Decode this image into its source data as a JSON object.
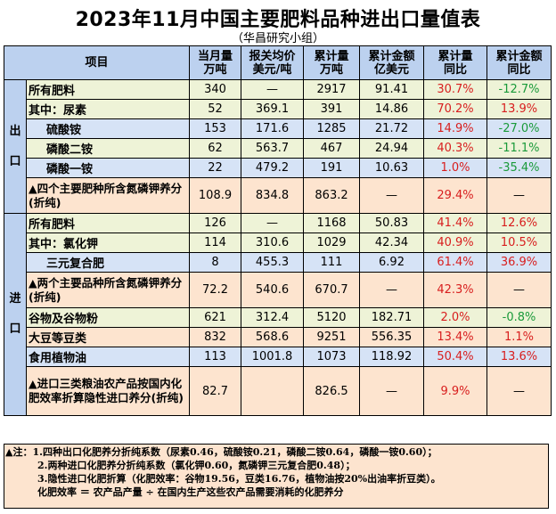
{
  "title": "2023年11月中国主要肥料品种进出口量值表",
  "subtitle": "（华昌研究小组）",
  "headers": {
    "item": "项目",
    "month_qty": [
      "当月量",
      "万吨"
    ],
    "avg_price": [
      "报关均价",
      "美元/吨"
    ],
    "cum_qty": [
      "累计量",
      "万吨"
    ],
    "cum_value": [
      "累计金额",
      "亿美元"
    ],
    "cum_qty_yoy": [
      "累计量",
      "同比"
    ],
    "cum_value_yoy": [
      "累计金额",
      "同比"
    ]
  },
  "sections": {
    "export": "出口",
    "import": "进口"
  },
  "export_rows": [
    {
      "name": "所有肥料",
      "month": "340",
      "price": "—",
      "cum": "2917",
      "value": "91.41",
      "qty_yoy": "30.7%",
      "val_yoy": "-12.7%"
    },
    {
      "name": "其中：尿素",
      "month": "52",
      "price": "369.1",
      "cum": "391",
      "value": "14.86",
      "qty_yoy": "70.2%",
      "val_yoy": "13.9%"
    },
    {
      "name": "硫酸铵",
      "month": "153",
      "price": "171.6",
      "cum": "1285",
      "value": "21.72",
      "qty_yoy": "14.9%",
      "val_yoy": "-27.0%"
    },
    {
      "name": "磷酸二铵",
      "month": "62",
      "price": "563.7",
      "cum": "467",
      "value": "24.94",
      "qty_yoy": "40.3%",
      "val_yoy": "-11.1%"
    },
    {
      "name": "磷酸一铵",
      "month": "22",
      "price": "479.2",
      "cum": "191",
      "value": "10.63",
      "qty_yoy": "1.0%",
      "val_yoy": "-35.4%"
    },
    {
      "name": "▲四个主要肥种所含氮磷钾养分(折纯)",
      "month": "108.9",
      "price": "834.8",
      "cum": "863.2",
      "value": "—",
      "qty_yoy": "29.4%",
      "val_yoy": "—"
    }
  ],
  "import_rows": [
    {
      "name": "所有肥料",
      "month": "126",
      "price": "—",
      "cum": "1168",
      "value": "50.83",
      "qty_yoy": "41.4%",
      "val_yoy": "12.6%"
    },
    {
      "name": "其中：氯化钾",
      "month": "114",
      "price": "310.6",
      "cum": "1029",
      "value": "42.34",
      "qty_yoy": "40.9%",
      "val_yoy": "10.5%"
    },
    {
      "name": "三元复合肥",
      "month": "8",
      "price": "455.3",
      "cum": "111",
      "value": "6.92",
      "qty_yoy": "61.4%",
      "val_yoy": "36.9%"
    },
    {
      "name": "▲两个主要品种所含氮磷钾养分(折纯)",
      "month": "72.2",
      "price": "540.6",
      "cum": "670.7",
      "value": "—",
      "qty_yoy": "42.3%",
      "val_yoy": "—"
    },
    {
      "name": "谷物及谷物粉",
      "month": "621",
      "price": "312.4",
      "cum": "5120",
      "value": "182.71",
      "qty_yoy": "2.0%",
      "val_yoy": "-0.8%"
    },
    {
      "name": "大豆等豆类",
      "month": "832",
      "price": "568.6",
      "cum": "9251",
      "value": "556.35",
      "qty_yoy": "13.4%",
      "val_yoy": "1.1%"
    },
    {
      "name": "食用植物油",
      "month": "113",
      "price": "1001.8",
      "cum": "1073",
      "value": "118.92",
      "qty_yoy": "50.4%",
      "val_yoy": "13.6%"
    },
    {
      "name": "▲进口三类粮油农产品按国内化肥效率折算隐性进口养分(折纯)",
      "month": "82.7",
      "price": "",
      "cum": "826.5",
      "value": "—",
      "qty_yoy": "9.9%",
      "val_yoy": "—"
    }
  ],
  "notes": [
    "▲注：1.四种出口化肥养分折纯系数（尿素0.46，硫酸铵0.21，磷酸二铵0.64，磷酸一铵0.60）；",
    "2.两种进口化肥养分折纯系数（氯化钾0.60，氮磷钾三元复合肥0.48）；",
    "3.隐性进口化肥折算（化肥效率：谷物19.56，豆类16.76，植物油按20%出油率折豆类）。",
    "化肥效率 ＝ 农产品产量 ÷ 在国内生产这些农产品需要消耗的化肥养分"
  ],
  "colors": {
    "header_bg": "#bcd1ef",
    "green_row": "#eef3d7",
    "blue_row": "#d6e3f6",
    "orange_row": "#fde4cf",
    "positive": "#d81e1e",
    "negative": "#1a9a3a"
  }
}
